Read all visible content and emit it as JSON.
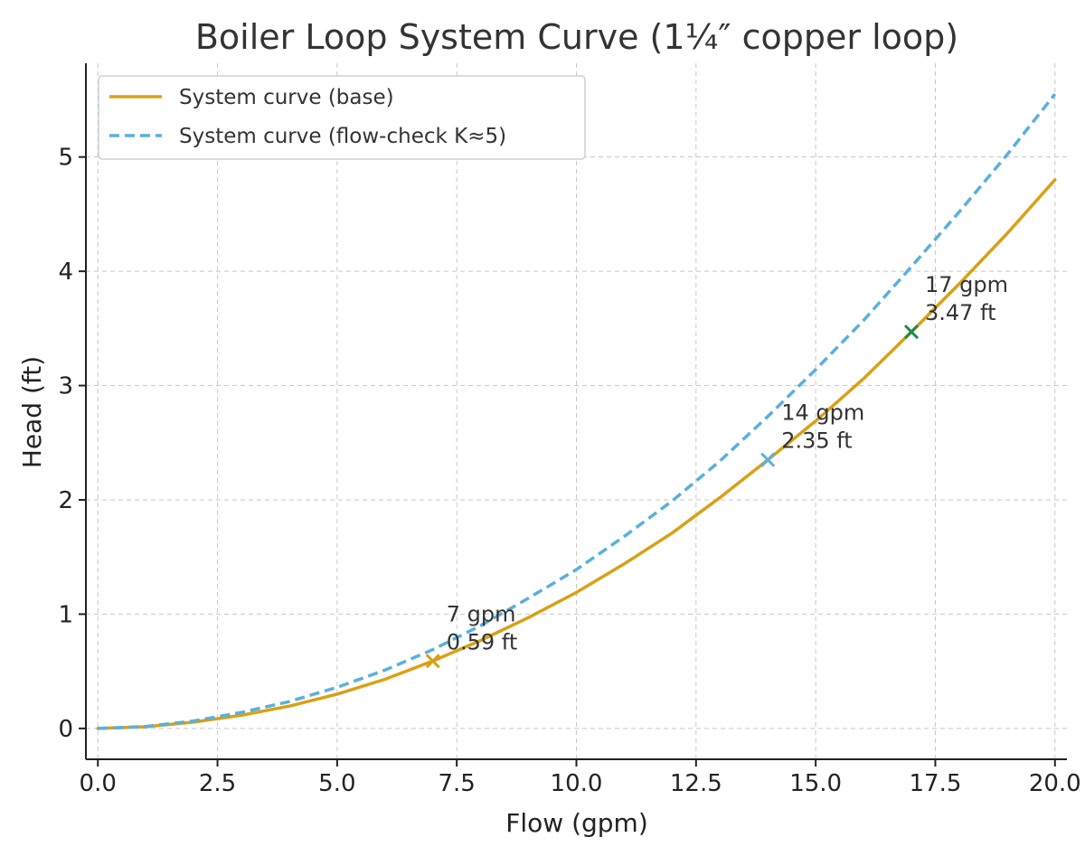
{
  "chart_data": {
    "type": "line",
    "title": "Boiler Loop System Curve (1¼″ copper loop)",
    "xlabel": "Flow (gpm)",
    "ylabel": "Head (ft)",
    "xlim": [
      -0.25,
      20.25
    ],
    "ylim": [
      -0.27,
      5.82
    ],
    "xticks": [
      0.0,
      2.5,
      5.0,
      7.5,
      10.0,
      12.5,
      15.0,
      17.5,
      20.0
    ],
    "xtick_labels": [
      "0.0",
      "2.5",
      "5.0",
      "7.5",
      "10.0",
      "12.5",
      "15.0",
      "17.5",
      "20.0"
    ],
    "yticks": [
      0,
      1,
      2,
      3,
      4,
      5
    ],
    "ytick_labels": [
      "0",
      "1",
      "2",
      "3",
      "4",
      "5"
    ],
    "grid": true,
    "legend_position": "top-left",
    "x": [
      0,
      1,
      2,
      3,
      4,
      5,
      6,
      7,
      8,
      9,
      10,
      11,
      12,
      13,
      14,
      15,
      16,
      17,
      18,
      19,
      20
    ],
    "series": [
      {
        "name": "System curve (base)",
        "color": "#DAA015",
        "style": "solid",
        "values": [
          0,
          0.015,
          0.055,
          0.115,
          0.195,
          0.3,
          0.43,
          0.59,
          0.77,
          0.97,
          1.19,
          1.44,
          1.71,
          2.02,
          2.35,
          2.69,
          3.06,
          3.47,
          3.89,
          4.33,
          4.8
        ]
      },
      {
        "name": "System curve (flow-check K≈5)",
        "color": "#5AB0DB",
        "style": "dashed",
        "values": [
          0,
          0.017,
          0.065,
          0.14,
          0.235,
          0.36,
          0.51,
          0.69,
          0.9,
          1.14,
          1.39,
          1.68,
          1.99,
          2.34,
          2.73,
          3.14,
          3.57,
          4.04,
          4.52,
          5.02,
          5.55
        ]
      }
    ],
    "points": [
      {
        "x": 7,
        "y": 0.59,
        "color": "#DAA015",
        "label_line1": "7 gpm",
        "label_line2": "0.59 ft"
      },
      {
        "x": 14,
        "y": 2.35,
        "color": "#5AB0DB",
        "label_line1": "14 gpm",
        "label_line2": "2.35 ft"
      },
      {
        "x": 17,
        "y": 3.47,
        "color": "#1A8A4A",
        "label_line1": "17 gpm",
        "label_line2": "3.47 ft"
      }
    ]
  }
}
